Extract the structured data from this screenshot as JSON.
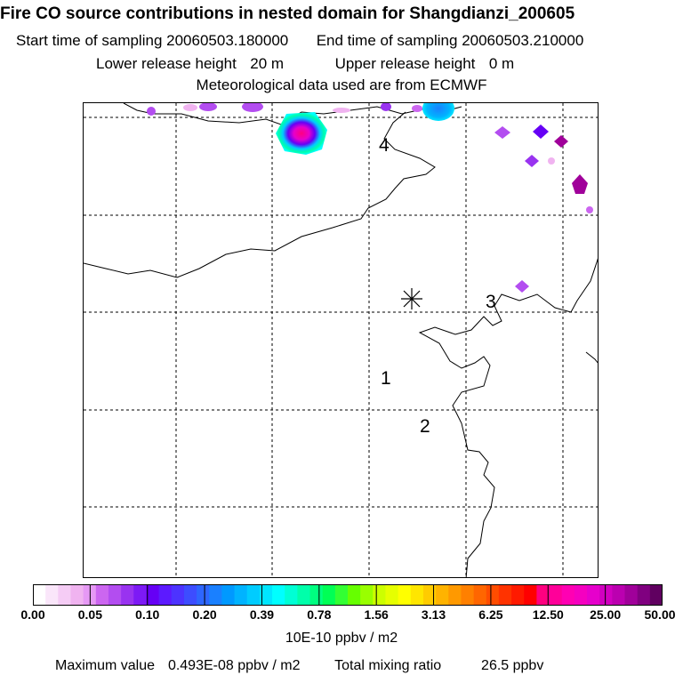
{
  "header": {
    "title": "Fire CO source contributions in nested domain for Shangdianzi_200605",
    "start_label": "Start time of sampling",
    "start_value": "20060503.180000",
    "end_label": "End time of sampling",
    "end_value": "20060503.210000",
    "lower_label": "Lower release height",
    "lower_value": "20 m",
    "upper_label": "Upper release height",
    "upper_value": "0 m",
    "met_note": "Meteorological data used are from ECMWF"
  },
  "map": {
    "station_marker": "asterisk-icon",
    "labels": [
      "1",
      "2",
      "3",
      "4"
    ]
  },
  "legend": {
    "ticks": [
      "0.00",
      "0.05",
      "0.10",
      "0.20",
      "0.39",
      "0.78",
      "1.56",
      "3.13",
      "6.25",
      "12.50",
      "25.00",
      "50.00"
    ],
    "colors": [
      "#ffffff",
      "#fae6fa",
      "#f5ccf5",
      "#f0b3f0",
      "#e699f5",
      "#cc66f0",
      "#b34df0",
      "#9933f0",
      "#7d1af5",
      "#6600f5",
      "#5c1aff",
      "#4d33ff",
      "#3d4dff",
      "#2e66ff",
      "#1a80ff",
      "#0099ff",
      "#00b3ff",
      "#00ccff",
      "#00e6ff",
      "#00ffff",
      "#00ffd5",
      "#00ffaa",
      "#00ff80",
      "#00ff55",
      "#33ff33",
      "#66ff00",
      "#99ff00",
      "#ccff00",
      "#e6ff00",
      "#ffff00",
      "#ffe600",
      "#ffcc00",
      "#ffb300",
      "#ff9900",
      "#ff8000",
      "#ff6600",
      "#ff4d00",
      "#ff3300",
      "#ff1a00",
      "#ff0000",
      "#ff0080",
      "#ff0099",
      "#ff00b3",
      "#f500c0",
      "#e600cc",
      "#d100c0",
      "#bb00b0",
      "#a0009a",
      "#800080",
      "#600060"
    ],
    "units": "10E-10 ppbv / m2"
  },
  "footer": {
    "max_label": "Maximum value",
    "max_value": "0.493E-08 ppbv / m2",
    "total_label": "Total mixing ratio",
    "total_value": "26.5 ppbv"
  }
}
